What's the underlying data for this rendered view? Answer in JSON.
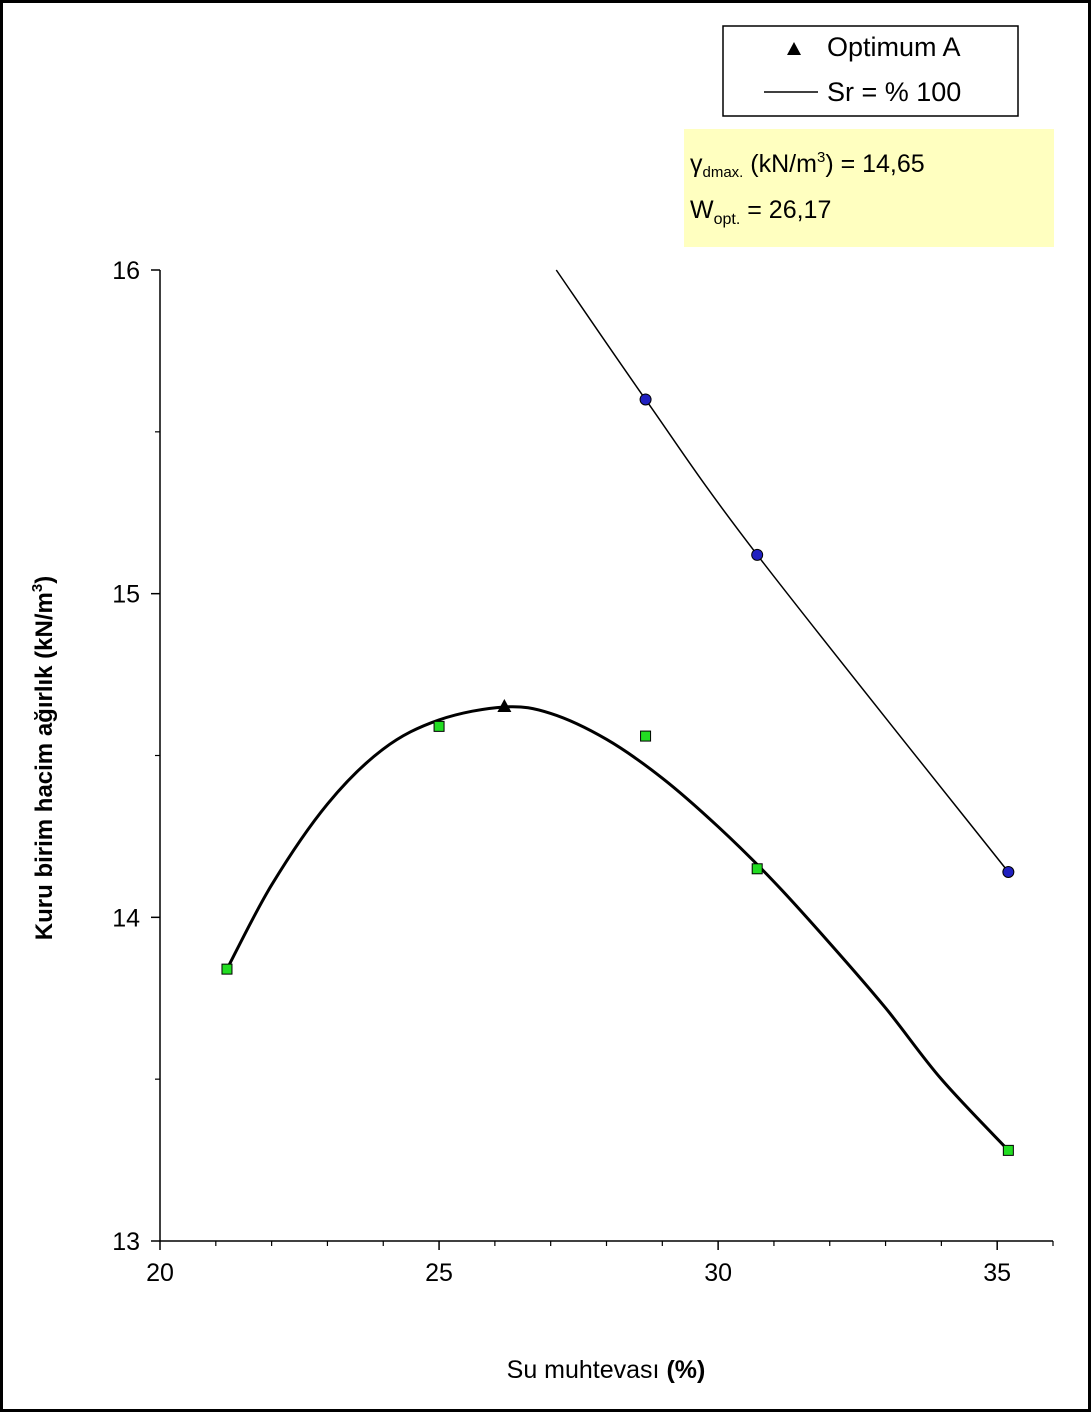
{
  "chart_data": {
    "type": "scatter",
    "title": "",
    "xlabel": "Su muhtevası (%)",
    "xlabel_main": "Su muhtevası ",
    "xlabel_unit": "(%)",
    "ylabel": "Kuru birim hacim ağırlık (kN/m3)",
    "ylabel_main": "Kuru birim hacim ağırlık (kN/m",
    "ylabel_sup": "3",
    "ylabel_tail": ")",
    "xlim": [
      20,
      36
    ],
    "ylim": [
      13,
      16
    ],
    "x_ticks": [
      20,
      25,
      30,
      35
    ],
    "x_minor_ticks": [
      21,
      22,
      23,
      24,
      26,
      27,
      28,
      29,
      31,
      32,
      33,
      34,
      36
    ],
    "y_ticks": [
      13,
      14,
      15,
      16
    ],
    "y_minor_ticks": [
      13.5,
      14.5,
      15.5
    ],
    "grid": false,
    "legend_placement": "top-right",
    "legend": {
      "optimum_label": "Optimum A",
      "saturation_label": "Sr = % 100"
    },
    "info_box": {
      "gamma_symbol": "γ",
      "gamma_sub": "dmax.",
      "gamma_unit_pre": " (kN/m",
      "gamma_unit_sup": "3",
      "gamma_unit_post": ") = 14,65",
      "w_symbol": "W",
      "w_sub": "opt.",
      "w_value": " = 26,17",
      "background": "#ffffc0"
    },
    "series": [
      {
        "kind": "compaction-points",
        "marker": "square",
        "color": "#22dd22",
        "x": [
          21.2,
          25.0,
          28.7,
          30.7,
          35.2
        ],
        "y": [
          13.84,
          14.59,
          14.56,
          14.15,
          13.28
        ]
      },
      {
        "kind": "compaction-curve",
        "color": "#000000",
        "x": [
          21.2,
          22.0,
          23.0,
          24.0,
          25.0,
          26.17,
          27.0,
          28.0,
          29.0,
          30.0,
          31.0,
          32.0,
          33.0,
          34.0,
          35.2
        ],
        "y": [
          13.84,
          14.1,
          14.35,
          14.52,
          14.61,
          14.65,
          14.63,
          14.55,
          14.43,
          14.28,
          14.11,
          13.92,
          13.72,
          13.5,
          13.28
        ]
      },
      {
        "name": "Optimum A",
        "kind": "optimum",
        "marker": "triangle",
        "color": "#000000",
        "x": [
          26.17
        ],
        "y": [
          14.65
        ]
      },
      {
        "kind": "saturation-points",
        "marker": "circle",
        "color": "#2020c0",
        "x": [
          28.7,
          30.7,
          35.2
        ],
        "y": [
          15.6,
          15.12,
          14.14
        ]
      },
      {
        "name": "Sr = % 100",
        "kind": "saturation-line",
        "color": "#000000",
        "x": [
          27.1,
          28.7,
          30.7,
          35.2
        ],
        "y": [
          16.0,
          15.6,
          15.12,
          14.14
        ]
      }
    ]
  }
}
